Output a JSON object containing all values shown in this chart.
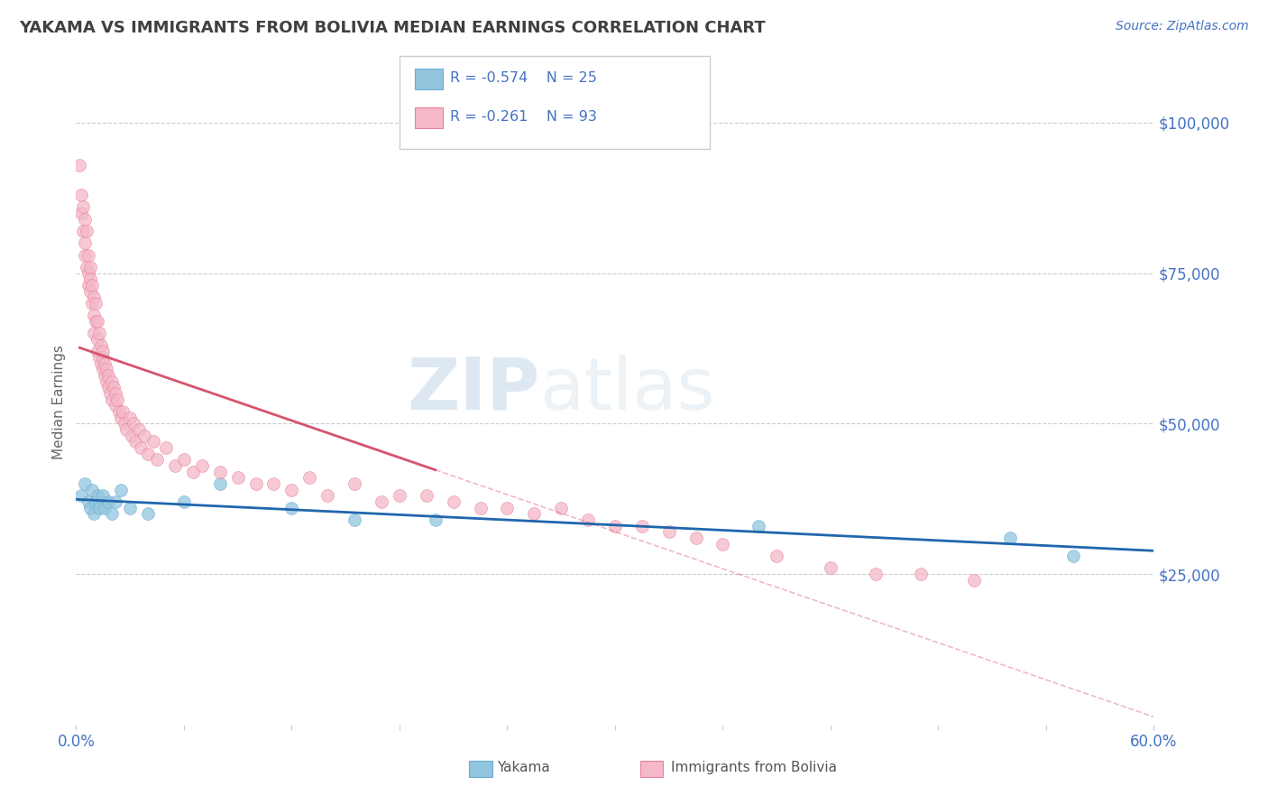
{
  "title": "YAKAMA VS IMMIGRANTS FROM BOLIVIA MEDIAN EARNINGS CORRELATION CHART",
  "source": "Source: ZipAtlas.com",
  "ylabel": "Median Earnings",
  "xlim": [
    0.0,
    0.6
  ],
  "ylim": [
    0,
    107000
  ],
  "yticks": [
    0,
    25000,
    50000,
    75000,
    100000
  ],
  "ytick_labels": [
    "",
    "$25,000",
    "$50,000",
    "$75,000",
    "$100,000"
  ],
  "xticks": [
    0.0,
    0.06,
    0.12,
    0.18,
    0.24,
    0.3,
    0.36,
    0.42,
    0.48,
    0.54,
    0.6
  ],
  "background_color": "#ffffff",
  "grid_color": "#cccccc",
  "axis_label_color": "#4472c4",
  "title_color": "#404040",
  "watermark_text": "ZIP",
  "watermark_text2": "atlas",
  "series": [
    {
      "name": "Yakama",
      "color": "#92c5de",
      "border_color": "#6baed6",
      "R": -0.574,
      "N": 25,
      "trend_color": "#2166ac",
      "x": [
        0.003,
        0.005,
        0.007,
        0.008,
        0.009,
        0.01,
        0.011,
        0.012,
        0.013,
        0.015,
        0.016,
        0.018,
        0.02,
        0.022,
        0.025,
        0.03,
        0.04,
        0.06,
        0.08,
        0.12,
        0.155,
        0.2,
        0.38,
        0.52,
        0.555
      ],
      "y": [
        38000,
        40000,
        37000,
        36000,
        39000,
        35000,
        37000,
        38000,
        36000,
        38000,
        36000,
        37000,
        35000,
        37000,
        39000,
        36000,
        35000,
        37000,
        40000,
        36000,
        34000,
        34000,
        33000,
        31000,
        28000
      ]
    },
    {
      "name": "Immigrants from Bolivia",
      "color": "#f4b8c8",
      "border_color": "#e8839a",
      "R": -0.261,
      "N": 93,
      "trend_color": "#d6546e",
      "trend_x_start": 0.002,
      "trend_x_end": 0.2,
      "x": [
        0.002,
        0.003,
        0.003,
        0.004,
        0.004,
        0.005,
        0.005,
        0.005,
        0.006,
        0.006,
        0.007,
        0.007,
        0.007,
        0.008,
        0.008,
        0.008,
        0.009,
        0.009,
        0.01,
        0.01,
        0.01,
        0.011,
        0.011,
        0.012,
        0.012,
        0.012,
        0.013,
        0.013,
        0.014,
        0.014,
        0.015,
        0.015,
        0.015,
        0.016,
        0.016,
        0.017,
        0.017,
        0.018,
        0.018,
        0.019,
        0.02,
        0.02,
        0.021,
        0.022,
        0.022,
        0.023,
        0.024,
        0.025,
        0.026,
        0.027,
        0.028,
        0.03,
        0.031,
        0.032,
        0.033,
        0.035,
        0.036,
        0.038,
        0.04,
        0.043,
        0.045,
        0.05,
        0.055,
        0.06,
        0.065,
        0.07,
        0.08,
        0.09,
        0.1,
        0.11,
        0.12,
        0.13,
        0.14,
        0.155,
        0.17,
        0.18,
        0.195,
        0.21,
        0.225,
        0.24,
        0.255,
        0.27,
        0.285,
        0.3,
        0.315,
        0.33,
        0.345,
        0.36,
        0.39,
        0.42,
        0.445,
        0.47,
        0.5
      ],
      "y": [
        93000,
        88000,
        85000,
        86000,
        82000,
        84000,
        80000,
        78000,
        76000,
        82000,
        75000,
        78000,
        73000,
        74000,
        76000,
        72000,
        70000,
        73000,
        68000,
        71000,
        65000,
        67000,
        70000,
        64000,
        67000,
        62000,
        65000,
        61000,
        63000,
        60000,
        61000,
        59000,
        62000,
        58000,
        60000,
        57000,
        59000,
        56000,
        58000,
        55000,
        54000,
        57000,
        56000,
        53000,
        55000,
        54000,
        52000,
        51000,
        52000,
        50000,
        49000,
        51000,
        48000,
        50000,
        47000,
        49000,
        46000,
        48000,
        45000,
        47000,
        44000,
        46000,
        43000,
        44000,
        42000,
        43000,
        42000,
        41000,
        40000,
        40000,
        39000,
        41000,
        38000,
        40000,
        37000,
        38000,
        38000,
        37000,
        36000,
        36000,
        35000,
        36000,
        34000,
        33000,
        33000,
        32000,
        31000,
        30000,
        28000,
        26000,
        25000,
        25000,
        24000
      ]
    }
  ]
}
